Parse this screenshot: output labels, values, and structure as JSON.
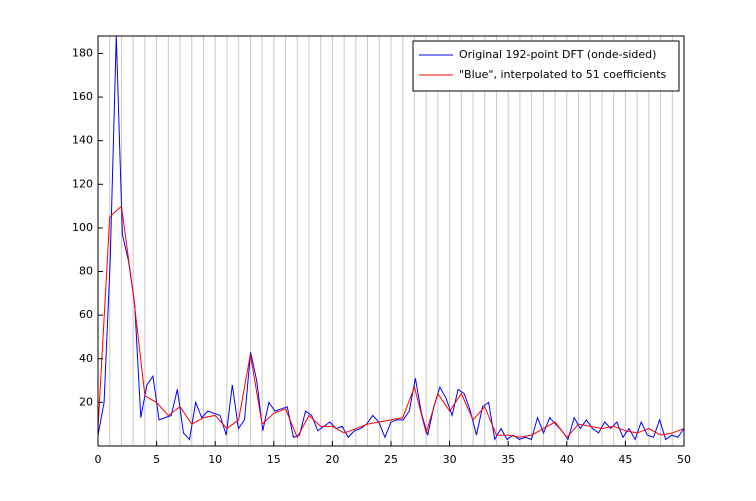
{
  "chart_data": {
    "type": "line",
    "xlim": [
      0,
      50
    ],
    "ylim": [
      0,
      188
    ],
    "xticks": [
      0,
      5,
      10,
      15,
      20,
      25,
      30,
      35,
      40,
      45,
      50
    ],
    "yticks": [
      20,
      40,
      60,
      80,
      100,
      120,
      140,
      160,
      180
    ],
    "grid": "x",
    "legend": "upper right",
    "series": [
      {
        "name": "Original 192-point DFT (onde-sided)",
        "color": "#0000ff",
        "x": [
          0,
          0.52,
          1.04,
          1.56,
          2.08,
          2.6,
          3.13,
          3.65,
          4.17,
          4.69,
          5.21,
          5.73,
          6.25,
          6.77,
          7.29,
          7.81,
          8.33,
          8.85,
          9.38,
          9.9,
          10.42,
          10.94,
          11.46,
          11.98,
          12.5,
          13.02,
          13.54,
          14.06,
          14.58,
          15.1,
          15.63,
          16.15,
          16.67,
          17.19,
          17.71,
          18.23,
          18.75,
          19.27,
          19.79,
          20.31,
          20.83,
          21.35,
          21.88,
          22.4,
          22.92,
          23.44,
          23.96,
          24.48,
          25,
          25.52,
          26.04,
          26.56,
          27.08,
          27.6,
          28.13,
          28.65,
          29.17,
          29.69,
          30.21,
          30.73,
          31.25,
          31.77,
          32.29,
          32.81,
          33.33,
          33.85,
          34.38,
          34.9,
          35.42,
          35.94,
          36.46,
          36.98,
          37.5,
          38.02,
          38.54,
          39.06,
          39.58,
          40.1,
          40.63,
          41.15,
          41.67,
          42.19,
          42.71,
          43.23,
          43.75,
          44.27,
          44.79,
          45.31,
          45.83,
          46.35,
          46.88,
          47.4,
          47.92,
          48.44,
          48.96,
          49.48,
          50
        ],
        "values": [
          5,
          20,
          85,
          188,
          97,
          85,
          65,
          13,
          28,
          32,
          12,
          13,
          14,
          26,
          6,
          3,
          20,
          13,
          16,
          15,
          14,
          5,
          28,
          8,
          12,
          43,
          30,
          7,
          20,
          16,
          17,
          18,
          4,
          5,
          16,
          14,
          7,
          9,
          11,
          8,
          9,
          4,
          7,
          8,
          10,
          14,
          11,
          4,
          11,
          12,
          12,
          16,
          31,
          15,
          5,
          18,
          27,
          22,
          14,
          26,
          24,
          16,
          5,
          18,
          20,
          3,
          8,
          3,
          5,
          3,
          4,
          3,
          13,
          6,
          13,
          10,
          7,
          3,
          13,
          8,
          12,
          8,
          6,
          11,
          8,
          11,
          4,
          8,
          3,
          11,
          5,
          4,
          12,
          3,
          5,
          4,
          8
        ]
      },
      {
        "name": "\"Blue\", interpolated to 51 coefficients",
        "color": "#ff0000",
        "x": [
          0,
          1,
          2,
          3,
          4,
          5,
          6,
          7,
          8,
          9,
          10,
          11,
          12,
          13,
          14,
          15,
          16,
          17,
          18,
          19,
          20,
          21,
          22,
          23,
          24,
          25,
          26,
          27,
          28,
          29,
          30,
          31,
          32,
          33,
          34,
          35,
          36,
          37,
          38,
          39,
          40,
          41,
          42,
          43,
          44,
          45,
          46,
          47,
          48,
          49,
          50
        ],
        "values": [
          8,
          105,
          110,
          70,
          23,
          20,
          14,
          18,
          10,
          13,
          14,
          8,
          12,
          42,
          10,
          15,
          17,
          4,
          14,
          9,
          9,
          6,
          8,
          10,
          11,
          12,
          13,
          27,
          6,
          24,
          16,
          24,
          12,
          18,
          5,
          5,
          4,
          5,
          8,
          11,
          4,
          10,
          9,
          8,
          9,
          7,
          6,
          8,
          5,
          6,
          8
        ]
      }
    ]
  }
}
